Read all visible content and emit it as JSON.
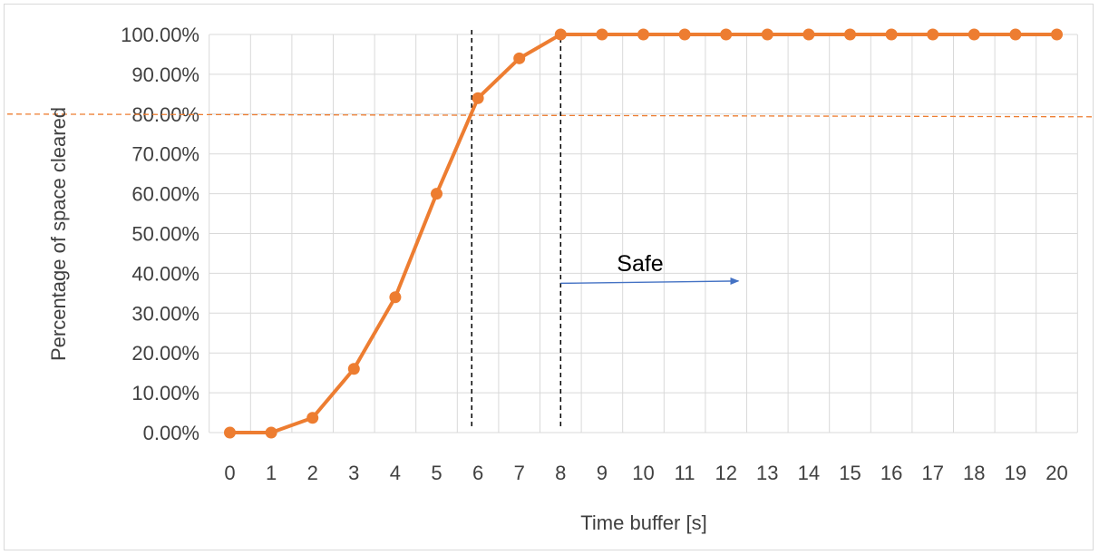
{
  "chart_data": {
    "type": "line",
    "title": "",
    "xlabel": "Time buffer [s]",
    "ylabel": "Percentage of space cleared",
    "x": [
      0,
      1,
      2,
      3,
      4,
      5,
      6,
      7,
      8,
      9,
      10,
      11,
      12,
      13,
      14,
      15,
      16,
      17,
      18,
      19,
      20
    ],
    "series": [
      {
        "values": [
          0,
          0,
          3.7,
          16,
          34,
          60,
          84,
          94,
          100,
          100,
          100,
          100,
          100,
          100,
          100,
          100,
          100,
          100,
          100,
          100,
          100
        ],
        "color": "#ed7d31"
      }
    ],
    "ylim": [
      0,
      100
    ],
    "xlim": [
      0,
      20
    ],
    "y_ticks": [
      "0.00%",
      "10.00%",
      "20.00%",
      "30.00%",
      "40.00%",
      "50.00%",
      "60.00%",
      "70.00%",
      "80.00%",
      "90.00%",
      "100.00%"
    ],
    "x_ticks": [
      "0",
      "1",
      "2",
      "3",
      "4",
      "5",
      "6",
      "7",
      "8",
      "9",
      "10",
      "11",
      "12",
      "13",
      "14",
      "15",
      "16",
      "17",
      "18",
      "19",
      "20"
    ],
    "grid": true,
    "legend": "none",
    "annotations": {
      "threshold_y": 80,
      "threshold_color": "#ed7d31",
      "vlines_x": [
        5.85,
        8
      ],
      "safe_label": "Safe",
      "safe_arrow_x": [
        8,
        12.3
      ],
      "safe_arrow_y": 37.5,
      "arrow_color": "#4472c4"
    },
    "colors": {
      "grid": "#d9d9d9",
      "text": "#404040"
    }
  }
}
